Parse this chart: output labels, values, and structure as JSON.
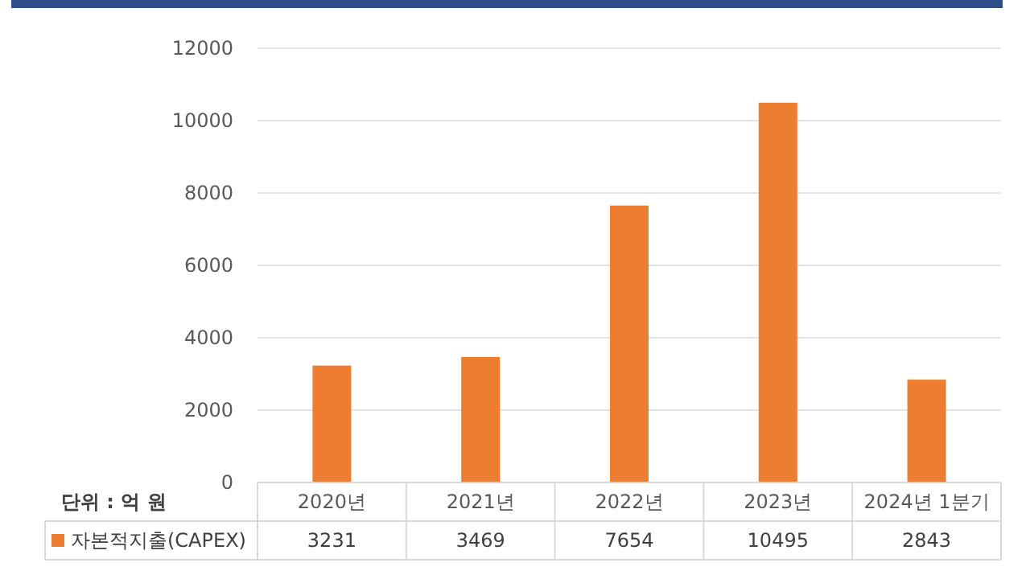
{
  "chart_data": {
    "type": "bar",
    "categories": [
      "2020년",
      "2021년",
      "2022년",
      "2023년",
      "2024년 1분기"
    ],
    "series": [
      {
        "name": "자본적지출(CAPEX)",
        "color": "#ed7d31",
        "values": [
          3231,
          3469,
          7654,
          10495,
          2843
        ]
      }
    ],
    "ylim": [
      0,
      12000
    ],
    "yticks": [
      0,
      2000,
      4000,
      6000,
      8000,
      10000,
      12000
    ],
    "grid": "y",
    "legend": "bottom",
    "data_labels": true,
    "annotations": [
      "단위 : 억 원"
    ]
  }
}
